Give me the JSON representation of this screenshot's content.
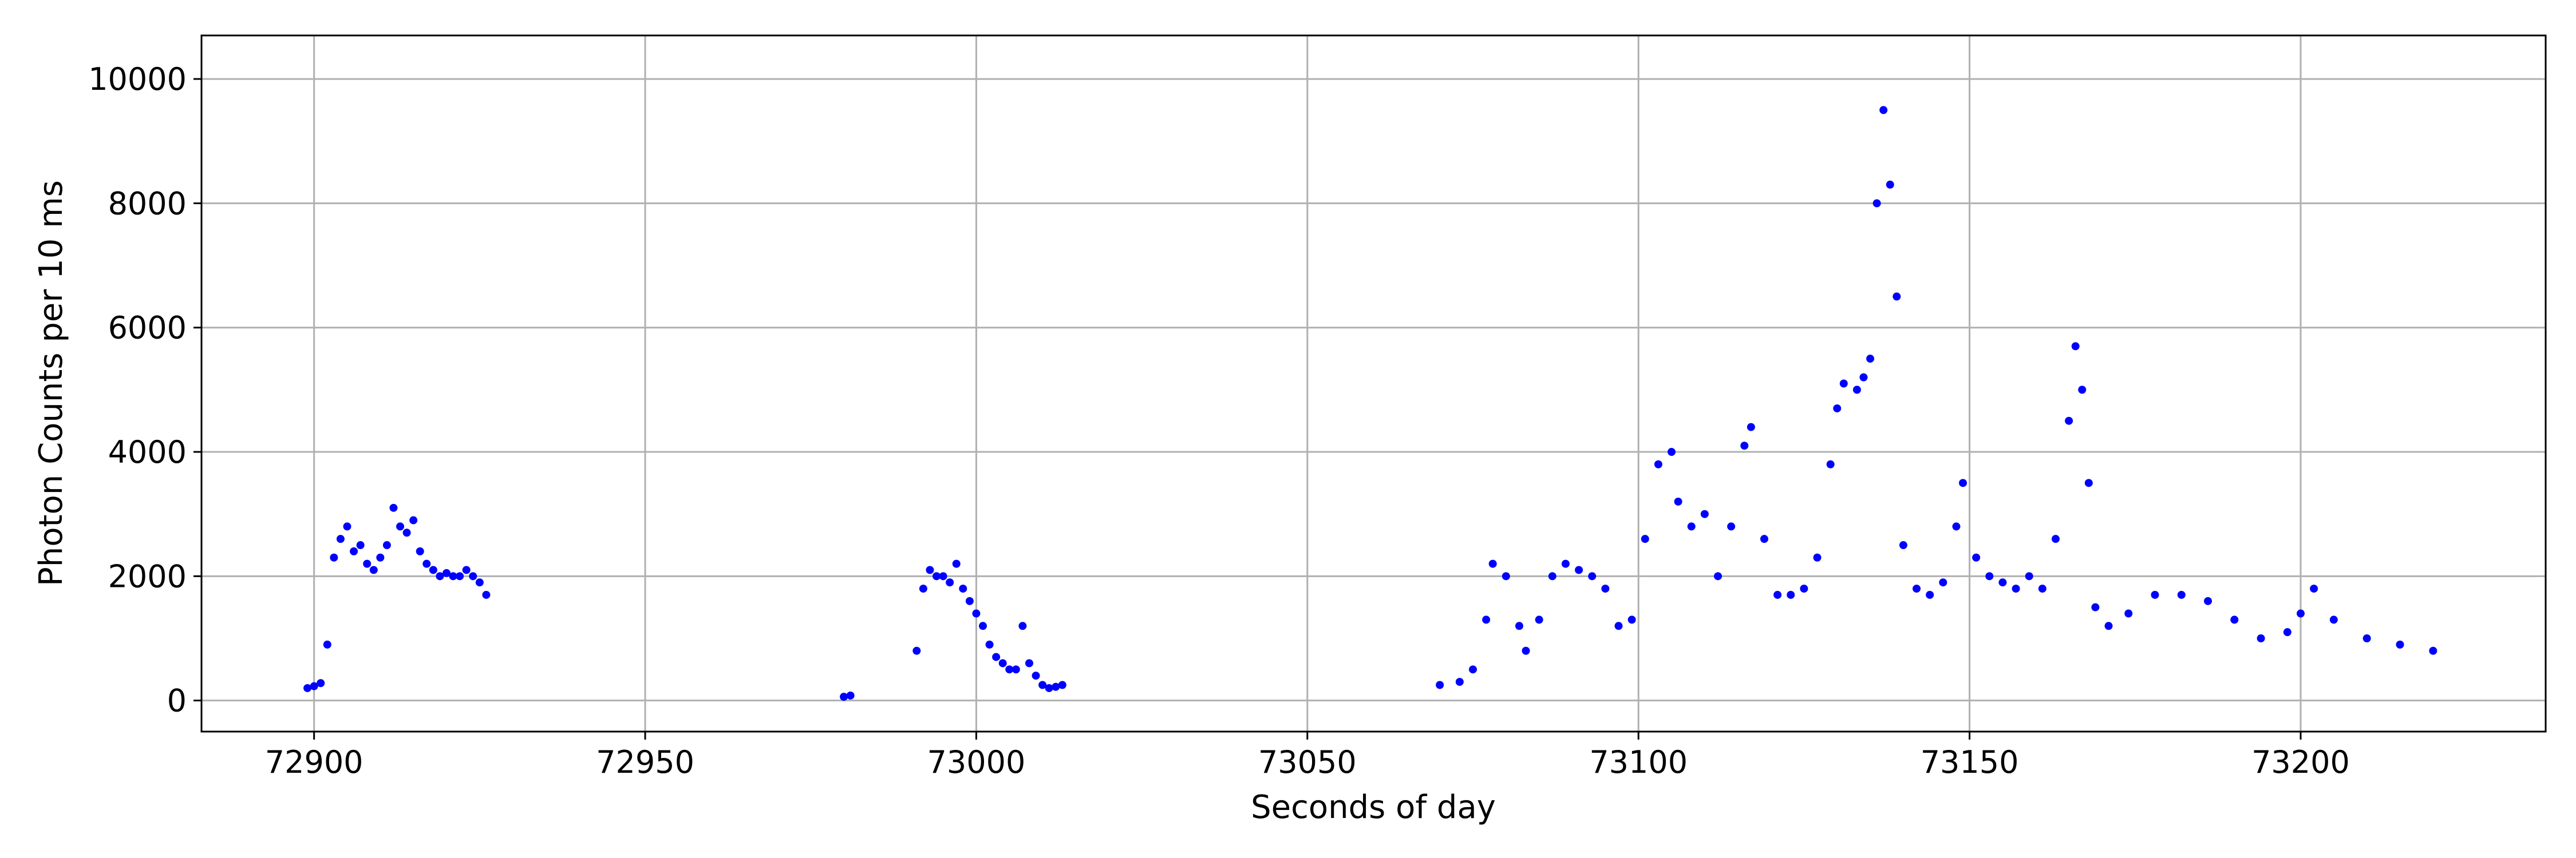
{
  "chart_data": {
    "type": "scatter",
    "title": "",
    "xlabel": "Seconds of day",
    "ylabel": "Photon Counts per 10 ms",
    "xlim": [
      72883,
      73237
    ],
    "ylim": [
      -500,
      10700
    ],
    "xticks": [
      72900,
      72950,
      73000,
      73050,
      73100,
      73150,
      73200
    ],
    "xtick_labels": [
      "72900",
      "72950",
      "73000",
      "73050",
      "73100",
      "73150",
      "73200"
    ],
    "yticks": [
      0,
      2000,
      4000,
      6000,
      8000,
      10000
    ],
    "ytick_labels": [
      "0",
      "2000",
      "4000",
      "6000",
      "8000",
      "10000"
    ],
    "grid": true,
    "marker_color": "#0000ff",
    "series": [
      {
        "segments": [
          {
            "x": [
              72899,
              72900,
              72901,
              72902,
              72903,
              72904,
              72905,
              72906,
              72907,
              72908,
              72909,
              72910,
              72911,
              72912,
              72913,
              72914,
              72915,
              72916,
              72917,
              72918,
              72919,
              72920,
              72921,
              72922,
              72923,
              72924,
              72925,
              72926
            ],
            "y": [
              200,
              230,
              280,
              900,
              2300,
              2600,
              2800,
              2400,
              2500,
              2200,
              2100,
              2300,
              2500,
              3100,
              2800,
              2700,
              2900,
              2400,
              2200,
              2100,
              2000,
              2050,
              2000,
              2000,
              2100,
              2000,
              1900,
              1700
            ]
          },
          {
            "x": [
              72980,
              72981
            ],
            "y": [
              60,
              80
            ]
          },
          {
            "x": [
              72991,
              72992,
              72993,
              72994,
              72995,
              72996,
              72997,
              72998,
              72999,
              73000,
              73001,
              73002,
              73003,
              73004,
              73005,
              73006,
              73007,
              73008,
              73009,
              73010,
              73011,
              73012,
              73013
            ],
            "y": [
              800,
              1800,
              2100,
              2000,
              2000,
              1900,
              2200,
              1800,
              1600,
              1400,
              1200,
              900,
              700,
              600,
              500,
              500,
              1200,
              600,
              400,
              250,
              200,
              220,
              250
            ]
          },
          {
            "x": [
              73070,
              73073,
              73075,
              73077,
              73078,
              73080,
              73082,
              73083,
              73085,
              73087,
              73089,
              73091,
              73093,
              73095,
              73097,
              73099,
              73101,
              73103,
              73105,
              73106,
              73108,
              73110,
              73112,
              73114,
              73116,
              73117,
              73119,
              73121,
              73123,
              73125,
              73127,
              73129,
              73130,
              73131,
              73133,
              73134,
              73135,
              73136,
              73137,
              73138,
              73139,
              73140,
              73142,
              73144,
              73146,
              73148,
              73149,
              73151,
              73153,
              73155,
              73157,
              73159,
              73161,
              73163,
              73165,
              73166,
              73167,
              73168,
              73169,
              73171,
              73174,
              73178,
              73182,
              73186,
              73190,
              73194,
              73198,
              73200,
              73202,
              73205,
              73210,
              73215,
              73220
            ],
            "y": [
              250,
              300,
              500,
              1300,
              2200,
              2000,
              1200,
              800,
              1300,
              2000,
              2200,
              2100,
              2000,
              1800,
              1200,
              1300,
              2600,
              3800,
              4000,
              3200,
              2800,
              3000,
              2000,
              2800,
              4100,
              4400,
              2600,
              1700,
              1700,
              1800,
              2300,
              3800,
              4700,
              5100,
              5000,
              5200,
              5500,
              8000,
              9500,
              8300,
              6500,
              2500,
              1800,
              1700,
              1900,
              2800,
              3500,
              2300,
              2000,
              1900,
              1800,
              2000,
              1800,
              2600,
              4500,
              5700,
              5000,
              3500,
              1500,
              1200,
              1400,
              1700,
              1700,
              1600,
              1300,
              1000,
              1100,
              1400,
              1800,
              1300,
              1000,
              900,
              800
            ]
          }
        ]
      }
    ]
  }
}
